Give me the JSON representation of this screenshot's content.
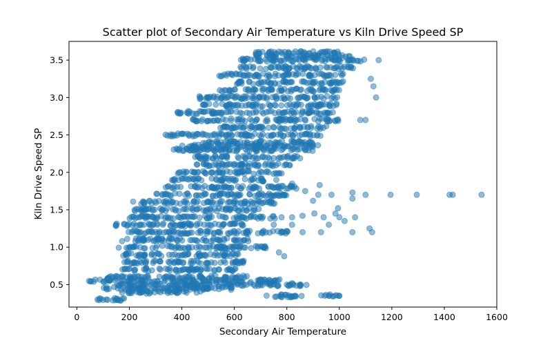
{
  "chart_data": {
    "type": "scatter",
    "title": "Scatter plot of Secondary Air Temperature vs Kiln Drive Speed SP",
    "xlabel": "Secondary Air Temperature",
    "ylabel": "Kiln Drive Speed SP",
    "xlim": [
      -30,
      1600
    ],
    "ylim": [
      0.2,
      3.75
    ],
    "xticks": [
      "0",
      "200",
      "400",
      "600",
      "800",
      "1000",
      "1200",
      "1400",
      "1600"
    ],
    "yticks": [
      "0.5",
      "1.0",
      "1.5",
      "2.0",
      "2.5",
      "3.0",
      "3.5"
    ],
    "grid": false,
    "legend": "none",
    "series": [
      {
        "color": "#1f77b4",
        "alpha": 0.5,
        "bands": [
          {
            "y": 0.3,
            "x_min": 65,
            "x_max": 190
          },
          {
            "y": 0.35,
            "x_min": 720,
            "x_max": 860
          },
          {
            "y": 0.35,
            "x_min": 930,
            "x_max": 1000
          },
          {
            "y": 0.4,
            "x_min": 170,
            "x_max": 480
          },
          {
            "y": 0.45,
            "x_min": 90,
            "x_max": 600
          },
          {
            "y": 0.5,
            "x_min": 150,
            "x_max": 880
          },
          {
            "y": 0.55,
            "x_min": 45,
            "x_max": 780
          },
          {
            "y": 0.6,
            "x_min": 110,
            "x_max": 650
          },
          {
            "y": 0.7,
            "x_min": 170,
            "x_max": 620
          },
          {
            "y": 0.8,
            "x_min": 180,
            "x_max": 650
          },
          {
            "y": 0.9,
            "x_min": 170,
            "x_max": 640
          },
          {
            "y": 1.0,
            "x_min": 150,
            "x_max": 720
          },
          {
            "y": 1.1,
            "x_min": 170,
            "x_max": 660
          },
          {
            "y": 1.2,
            "x_min": 190,
            "x_max": 820
          },
          {
            "y": 1.3,
            "x_min": 140,
            "x_max": 640
          },
          {
            "y": 1.4,
            "x_min": 200,
            "x_max": 760
          },
          {
            "y": 1.5,
            "x_min": 220,
            "x_max": 700
          },
          {
            "y": 1.6,
            "x_min": 210,
            "x_max": 760
          },
          {
            "y": 1.7,
            "x_min": 290,
            "x_max": 800
          },
          {
            "y": 1.8,
            "x_min": 330,
            "x_max": 840
          },
          {
            "y": 1.9,
            "x_min": 360,
            "x_max": 720
          },
          {
            "y": 2.0,
            "x_min": 380,
            "x_max": 780
          },
          {
            "y": 2.1,
            "x_min": 420,
            "x_max": 820
          },
          {
            "y": 2.2,
            "x_min": 450,
            "x_max": 860
          },
          {
            "y": 2.3,
            "x_min": 350,
            "x_max": 900
          },
          {
            "y": 2.35,
            "x_min": 400,
            "x_max": 920
          },
          {
            "y": 2.4,
            "x_min": 480,
            "x_max": 900
          },
          {
            "y": 2.5,
            "x_min": 330,
            "x_max": 930
          },
          {
            "y": 2.6,
            "x_min": 540,
            "x_max": 960
          },
          {
            "y": 2.7,
            "x_min": 440,
            "x_max": 1000
          },
          {
            "y": 2.8,
            "x_min": 380,
            "x_max": 980
          },
          {
            "y": 2.9,
            "x_min": 480,
            "x_max": 990
          },
          {
            "y": 3.0,
            "x_min": 450,
            "x_max": 1010
          },
          {
            "y": 3.1,
            "x_min": 540,
            "x_max": 1000
          },
          {
            "y": 3.2,
            "x_min": 600,
            "x_max": 1030
          },
          {
            "y": 3.3,
            "x_min": 540,
            "x_max": 1020
          },
          {
            "y": 3.4,
            "x_min": 620,
            "x_max": 1060
          },
          {
            "y": 3.5,
            "x_min": 620,
            "x_max": 1100
          },
          {
            "y": 3.55,
            "x_min": 680,
            "x_max": 1050
          },
          {
            "y": 3.6,
            "x_min": 680,
            "x_max": 1000
          }
        ],
        "outliers": [
          [
            920,
            1.7
          ],
          [
            970,
            1.7
          ],
          [
            1050,
            1.73
          ],
          [
            1100,
            1.7
          ],
          [
            1195,
            1.7
          ],
          [
            1295,
            1.7
          ],
          [
            1420,
            1.7
          ],
          [
            1432,
            1.7
          ],
          [
            1542,
            1.7
          ],
          [
            1050,
            1.65
          ],
          [
            995,
            1.52
          ],
          [
            985,
            1.45
          ],
          [
            940,
            1.4
          ],
          [
            905,
            1.45
          ],
          [
            860,
            1.42
          ],
          [
            820,
            1.4
          ],
          [
            780,
            1.4
          ],
          [
            960,
            1.3
          ],
          [
            1000,
            1.4
          ],
          [
            1060,
            1.4
          ],
          [
            1115,
            1.25
          ],
          [
            1125,
            1.2
          ],
          [
            1050,
            1.2
          ],
          [
            930,
            1.2
          ],
          [
            860,
            1.2
          ],
          [
            820,
            1.3
          ],
          [
            750,
            1.3
          ],
          [
            770,
            0.93
          ],
          [
            790,
            0.88
          ],
          [
            750,
            0.55
          ],
          [
            800,
            0.5
          ],
          [
            850,
            0.48
          ],
          [
            830,
            0.35
          ],
          [
            960,
            0.35
          ],
          [
            1000,
            0.35
          ],
          [
            1020,
            1.35
          ],
          [
            900,
            1.62
          ],
          [
            925,
            1.83
          ],
          [
            870,
            1.75
          ],
          [
            1080,
            2.7
          ],
          [
            1100,
            2.7
          ],
          [
            1120,
            3.25
          ],
          [
            1130,
            3.15
          ],
          [
            1140,
            3.0
          ],
          [
            1150,
            3.5
          ],
          [
            1040,
            3.55
          ],
          [
            820,
            1.85
          ],
          [
            760,
            1.9
          ],
          [
            730,
            2.0
          ]
        ]
      }
    ]
  }
}
